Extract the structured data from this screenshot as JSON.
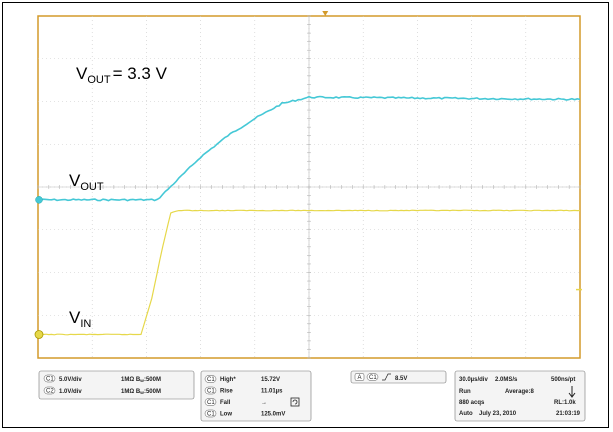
{
  "chart_data": {
    "type": "line",
    "time_per_div_us": 30,
    "x_divisions": 10,
    "y_divisions": 8,
    "annotations": {
      "vout_setpoint": "= 3.3 V",
      "vout_label": "V",
      "vout_sub": "OUT",
      "vout_title_label": "V",
      "vout_title_sub": "OUT",
      "vin_label": "V",
      "vin_sub": "IN"
    },
    "series": [
      {
        "channel": "C2",
        "color": "#45c8d6",
        "points_div": [
          [
            0,
            3.7
          ],
          [
            2.2,
            3.7
          ],
          [
            2.6,
            4.2
          ],
          [
            3,
            4.7
          ],
          [
            3.5,
            5.2
          ],
          [
            4,
            5.6
          ],
          [
            4.5,
            5.95
          ],
          [
            5,
            6.1
          ],
          [
            10,
            6.05
          ]
        ]
      },
      {
        "channel": "C1",
        "color": "#e6d84a",
        "points_div": [
          [
            0,
            0.55
          ],
          [
            1.9,
            0.55
          ],
          [
            2.1,
            1.4
          ],
          [
            2.3,
            2.6
          ],
          [
            2.45,
            3.4
          ],
          [
            2.6,
            3.45
          ],
          [
            10,
            3.45
          ]
        ]
      }
    ]
  },
  "panel": {
    "ch1_badge": "C1",
    "ch1_scale": "5.0V/div",
    "ch1_imp": "1MΩ",
    "ch1_bw_sym": "B",
    "ch1_bw_sub": "W",
    "ch1_bw": ":500M",
    "ch2_badge": "C2",
    "ch2_scale": "1.0V/div",
    "ch2_imp": "1MΩ",
    "ch2_bw_sym": "B",
    "ch2_bw_sub": "W",
    "ch2_bw": ":500M",
    "meas": [
      {
        "badge": "C1",
        "name": "High*",
        "value": "15.72V"
      },
      {
        "badge": "C1",
        "name": "Rise",
        "value": "11.01µs"
      },
      {
        "badge": "C1",
        "name": "Fall",
        "value": "→"
      },
      {
        "badge": "C1",
        "name": "Low",
        "value": "125.0mV"
      }
    ],
    "trigger_mode": "A",
    "trigger_ch": "C1",
    "trigger_level": "8.5V",
    "timebase": "30.0µs/div",
    "sample_rate": "2.0MS/s",
    "pt_rate": "500ns/pt",
    "run_state": "Run",
    "average": "Average:8",
    "acqs": "880 acqs",
    "rl": "RL:1.0k",
    "auto": "Auto",
    "date": "July 23, 2010",
    "time": "21:03:19"
  },
  "colors": {
    "grid": "#c8c8c8",
    "border": "#d39a2a",
    "ch1": "#e6d84a",
    "ch2": "#45c8d6"
  },
  "icons": {
    "single_seq": "down-arrow-icon",
    "fall_icon": "cycle-icon"
  }
}
